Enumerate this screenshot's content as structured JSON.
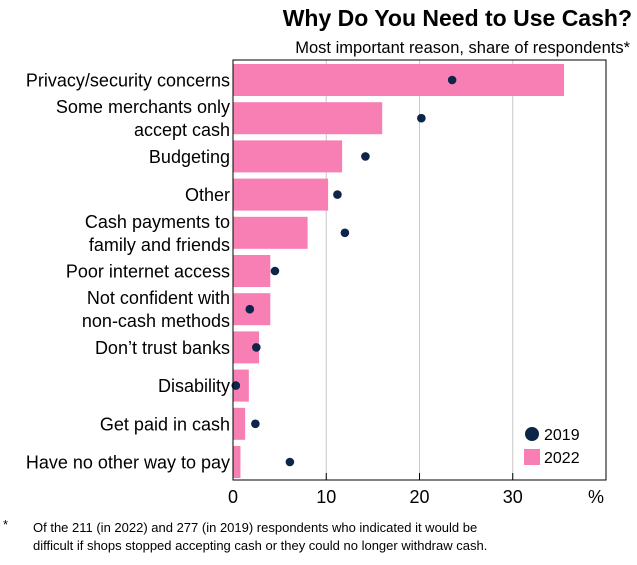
{
  "chart_data": {
    "type": "bar",
    "title": "Why Do You Need to Use Cash?",
    "subtitle": "Most important reason, share of respondents*",
    "categories": [
      [
        "Privacy/security concerns"
      ],
      [
        "Some merchants only",
        "accept cash"
      ],
      [
        "Budgeting"
      ],
      [
        "Other"
      ],
      [
        "Cash payments to",
        "family and friends"
      ],
      [
        "Poor internet access"
      ],
      [
        "Not confident with",
        "non-cash methods"
      ],
      [
        "Don’t trust banks"
      ],
      [
        "Disability"
      ],
      [
        "Get paid in cash"
      ],
      [
        "Have no other way to pay"
      ]
    ],
    "series": [
      {
        "name": "2022",
        "kind": "bar",
        "color": "#f77fb4",
        "values": [
          35.5,
          16,
          11.7,
          10.2,
          8,
          4,
          4,
          2.8,
          1.7,
          1.3,
          0.8
        ]
      },
      {
        "name": "2019",
        "kind": "dot",
        "color": "#0d2549",
        "values": [
          23.5,
          20.2,
          14.2,
          11.2,
          12,
          4.5,
          1.8,
          2.5,
          0.3,
          2.4,
          6.1
        ]
      }
    ],
    "xlim": [
      0,
      40
    ],
    "xticks": [
      0,
      10,
      20,
      30
    ],
    "x_unit": "%",
    "grid": true,
    "legend_position": "bottom-right",
    "footnote_marker": "*",
    "footnote": [
      "Of the 211 (in 2022) and 277 (in 2019) respondents who indicated it would be",
      "difficult if shops stopped accepting cash or they could no longer withdraw cash."
    ]
  }
}
